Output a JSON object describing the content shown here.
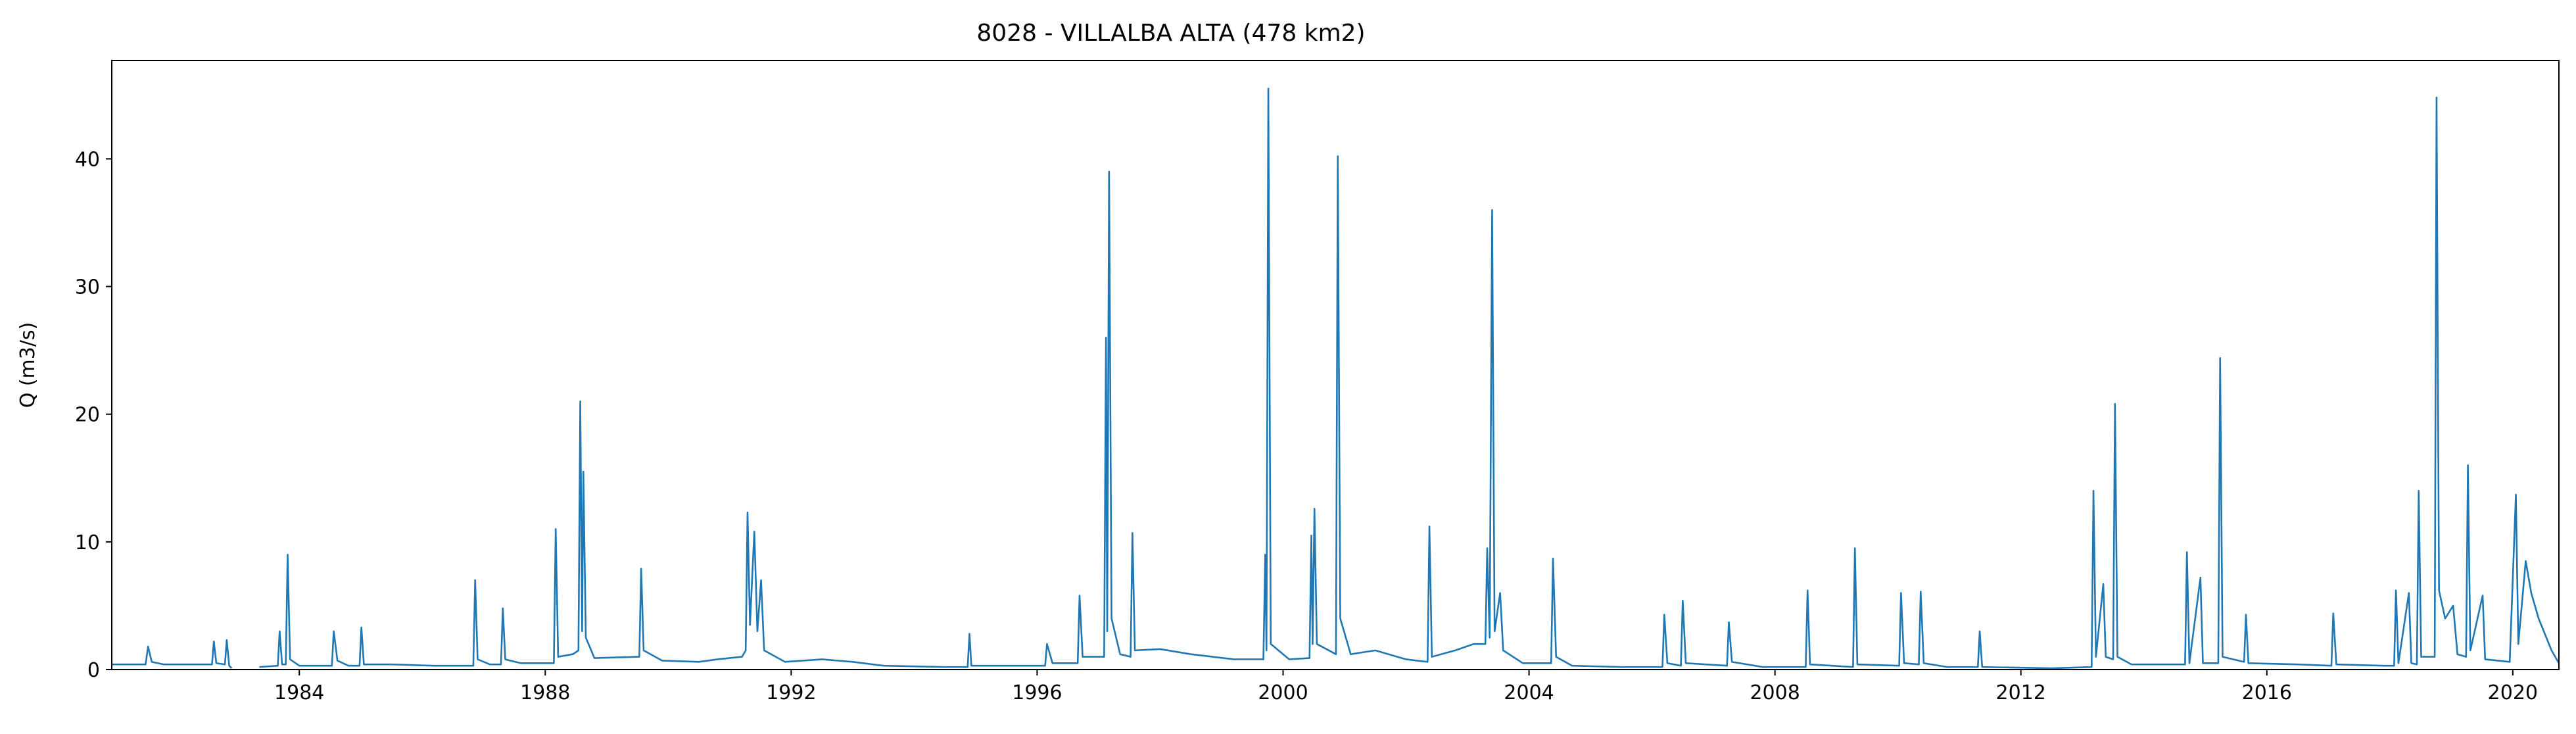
{
  "chart_data": {
    "type": "line",
    "title": "8028 - VILLALBA ALTA (478 km2)",
    "y_label": "Q (m3/s)",
    "xlim": [
      1980.95,
      2020.75
    ],
    "xticks": [
      1984,
      1988,
      1992,
      1996,
      2000,
      2004,
      2008,
      2012,
      2016,
      2020
    ],
    "ylim": [
      0,
      47.7
    ],
    "yticks": [
      0,
      10,
      20,
      30,
      40
    ],
    "grid": false,
    "series": [
      {
        "color": "#1f77b4",
        "x": [
          1980.95,
          1981.5,
          1981.54,
          1981.6,
          1981.8,
          1982.58,
          1982.61,
          1982.65,
          1982.79,
          1982.82,
          1982.86,
          1982.9,
          1983.1,
          1983.35,
          1983.65,
          1983.68,
          1983.72,
          1983.78,
          1983.81,
          1983.85,
          1984.0,
          1984.53,
          1984.56,
          1984.62,
          1984.8,
          1984.98,
          1985.01,
          1985.05,
          1985.5,
          1986.2,
          1986.83,
          1986.86,
          1986.9,
          1987.1,
          1987.28,
          1987.31,
          1987.35,
          1987.6,
          1988.14,
          1988.17,
          1988.21,
          1988.45,
          1988.54,
          1988.57,
          1988.6,
          1988.62,
          1988.66,
          1988.8,
          1989.53,
          1989.56,
          1989.6,
          1989.9,
          1990.5,
          1990.8,
          1991.2,
          1991.26,
          1991.29,
          1991.33,
          1991.4,
          1991.45,
          1991.51,
          1991.56,
          1991.9,
          1992.5,
          1993.0,
          1993.5,
          1994.5,
          1994.87,
          1994.9,
          1994.93,
          1995.8,
          1996.13,
          1996.16,
          1996.25,
          1996.66,
          1996.69,
          1996.74,
          1997.09,
          1997.12,
          1997.14,
          1997.17,
          1997.21,
          1997.35,
          1997.52,
          1997.55,
          1997.59,
          1998.0,
          1998.5,
          1999.2,
          1999.68,
          1999.71,
          1999.73,
          1999.76,
          1999.8,
          2000.1,
          2000.43,
          2000.46,
          2000.48,
          2000.51,
          2000.55,
          2000.86,
          2000.89,
          2000.93,
          2001.1,
          2001.5,
          2002.0,
          2002.35,
          2002.38,
          2002.42,
          2002.8,
          2003.1,
          2003.29,
          2003.32,
          2003.36,
          2003.4,
          2003.44,
          2003.53,
          2003.58,
          2003.9,
          2004.36,
          2004.39,
          2004.44,
          2004.7,
          2005.5,
          2006.17,
          2006.2,
          2006.25,
          2006.47,
          2006.5,
          2006.55,
          2007.22,
          2007.25,
          2007.3,
          2007.8,
          2008.5,
          2008.53,
          2008.57,
          2009.27,
          2009.3,
          2009.34,
          2010.02,
          2010.05,
          2010.1,
          2010.34,
          2010.37,
          2010.42,
          2010.8,
          2011.3,
          2011.33,
          2011.37,
          2012.5,
          2013.15,
          2013.18,
          2013.22,
          2013.34,
          2013.38,
          2013.5,
          2013.53,
          2013.57,
          2013.8,
          2014.67,
          2014.7,
          2014.74,
          2014.92,
          2014.96,
          2015.21,
          2015.24,
          2015.28,
          2015.63,
          2015.66,
          2015.7,
          2016.5,
          2017.05,
          2017.08,
          2017.13,
          2017.9,
          2018.07,
          2018.1,
          2018.14,
          2018.31,
          2018.35,
          2018.44,
          2018.47,
          2018.51,
          2018.73,
          2018.76,
          2018.8,
          2018.9,
          2019.03,
          2019.1,
          2019.24,
          2019.27,
          2019.31,
          2019.51,
          2019.55,
          2019.95,
          2020.05,
          2020.09,
          2020.21,
          2020.3,
          2020.42,
          2020.63,
          2020.75
        ],
        "values": [
          0.4,
          0.4,
          1.8,
          0.6,
          0.4,
          0.4,
          2.2,
          0.5,
          0.4,
          2.3,
          0.3,
          0.1,
          null,
          0.2,
          0.3,
          3,
          0.4,
          0.4,
          9,
          0.8,
          0.3,
          0.3,
          3,
          0.7,
          0.3,
          0.3,
          3.3,
          0.4,
          0.4,
          0.3,
          0.3,
          7,
          0.8,
          0.4,
          0.4,
          4.8,
          0.8,
          0.5,
          0.5,
          11,
          1,
          1.2,
          1.5,
          21,
          3,
          15.5,
          2.5,
          0.9,
          1,
          7.9,
          1.5,
          0.7,
          0.6,
          0.8,
          1,
          1.5,
          12.3,
          3.5,
          10.8,
          3,
          7,
          1.5,
          0.6,
          0.8,
          0.6,
          0.3,
          0.2,
          0.2,
          2.8,
          0.3,
          0.3,
          0.3,
          2,
          0.5,
          0.5,
          5.8,
          1,
          1,
          26,
          3,
          39,
          4,
          1.2,
          1,
          10.7,
          1.5,
          1.6,
          1.2,
          0.8,
          0.8,
          9,
          1.5,
          45.5,
          2,
          0.8,
          0.9,
          10.5,
          2,
          12.6,
          2,
          1.2,
          40.2,
          4,
          1.2,
          1.5,
          0.8,
          0.6,
          11.2,
          1,
          1.5,
          2,
          2,
          9.5,
          2.5,
          36,
          3,
          6,
          1.5,
          0.5,
          0.5,
          8.7,
          1,
          0.3,
          0.2,
          0.2,
          4.3,
          0.5,
          0.3,
          5.4,
          0.5,
          0.3,
          3.7,
          0.6,
          0.2,
          0.2,
          6.2,
          0.4,
          0.2,
          9.5,
          0.4,
          0.3,
          6,
          0.5,
          0.4,
          6.1,
          0.5,
          0.2,
          0.2,
          3,
          0.2,
          0.1,
          0.2,
          14,
          1,
          6.7,
          1,
          0.8,
          20.8,
          1,
          0.4,
          0.4,
          9.2,
          0.5,
          7.2,
          0.5,
          0.5,
          24.4,
          1,
          0.6,
          4.3,
          0.5,
          0.4,
          0.3,
          4.4,
          0.4,
          0.3,
          0.3,
          6.2,
          0.5,
          6,
          0.5,
          0.4,
          14,
          1,
          1,
          44.8,
          6.2,
          4,
          5,
          1.2,
          1,
          16,
          1.5,
          5.8,
          0.8,
          0.6,
          13.7,
          2,
          8.5,
          6,
          4,
          1.5,
          0.5
        ]
      }
    ]
  }
}
